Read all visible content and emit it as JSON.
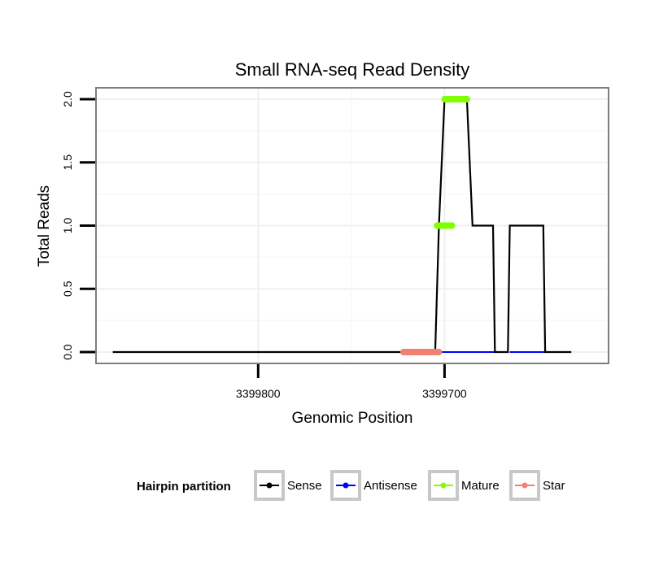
{
  "chart_data": {
    "type": "line",
    "title": "Small RNA-seq Read Density",
    "xlabel": "Genomic Position",
    "ylabel": "Total Reads",
    "x_reversed": true,
    "xlim": [
      3399887,
      3399612
    ],
    "ylim": [
      -0.09,
      2.09
    ],
    "xticks": [
      3399800,
      3399700
    ],
    "xtick_labels": [
      "3399800",
      "3399700"
    ],
    "yticks": [
      0.0,
      0.5,
      1.0,
      1.5,
      2.0
    ],
    "ytick_labels": [
      "0.0",
      "0.5",
      "1.0",
      "1.5",
      "2.0"
    ],
    "grid": true,
    "legend": {
      "title": "Hairpin partition",
      "position": "bottom",
      "entries": [
        {
          "name": "Sense",
          "color": "#000000"
        },
        {
          "name": "Antisense",
          "color": "#0000ff"
        },
        {
          "name": "Mature",
          "color": "#7fff00"
        },
        {
          "name": "Star",
          "color": "#f08070"
        }
      ]
    },
    "series": [
      {
        "name": "Sense",
        "color": "#000000",
        "x": [
          3399878,
          3399705,
          3399703,
          3399700,
          3399688,
          3399685,
          3399674,
          3399673,
          3399666,
          3399665,
          3399647,
          3399646,
          3399632
        ],
        "y": [
          0,
          0,
          1,
          2,
          2,
          1,
          1,
          0,
          0,
          1,
          1,
          0,
          0
        ]
      },
      {
        "name": "Antisense",
        "color": "#0000ff",
        "x": [
          3399705,
          3399673,
          3399665,
          3399646
        ],
        "y": [
          0,
          0,
          0,
          0
        ],
        "segments": [
          [
            0,
            1
          ],
          [
            2,
            3
          ]
        ]
      },
      {
        "name": "Mature",
        "color": "#7fff00",
        "segments": [
          {
            "x": [
              3399704,
              3399696
            ],
            "y": [
              1,
              1
            ]
          },
          {
            "x": [
              3399700,
              3399688
            ],
            "y": [
              2,
              2
            ]
          }
        ]
      },
      {
        "name": "Star",
        "color": "#f08070",
        "segments": [
          {
            "x": [
              3399722,
              3399703
            ],
            "y": [
              0,
              0
            ]
          }
        ]
      }
    ]
  }
}
